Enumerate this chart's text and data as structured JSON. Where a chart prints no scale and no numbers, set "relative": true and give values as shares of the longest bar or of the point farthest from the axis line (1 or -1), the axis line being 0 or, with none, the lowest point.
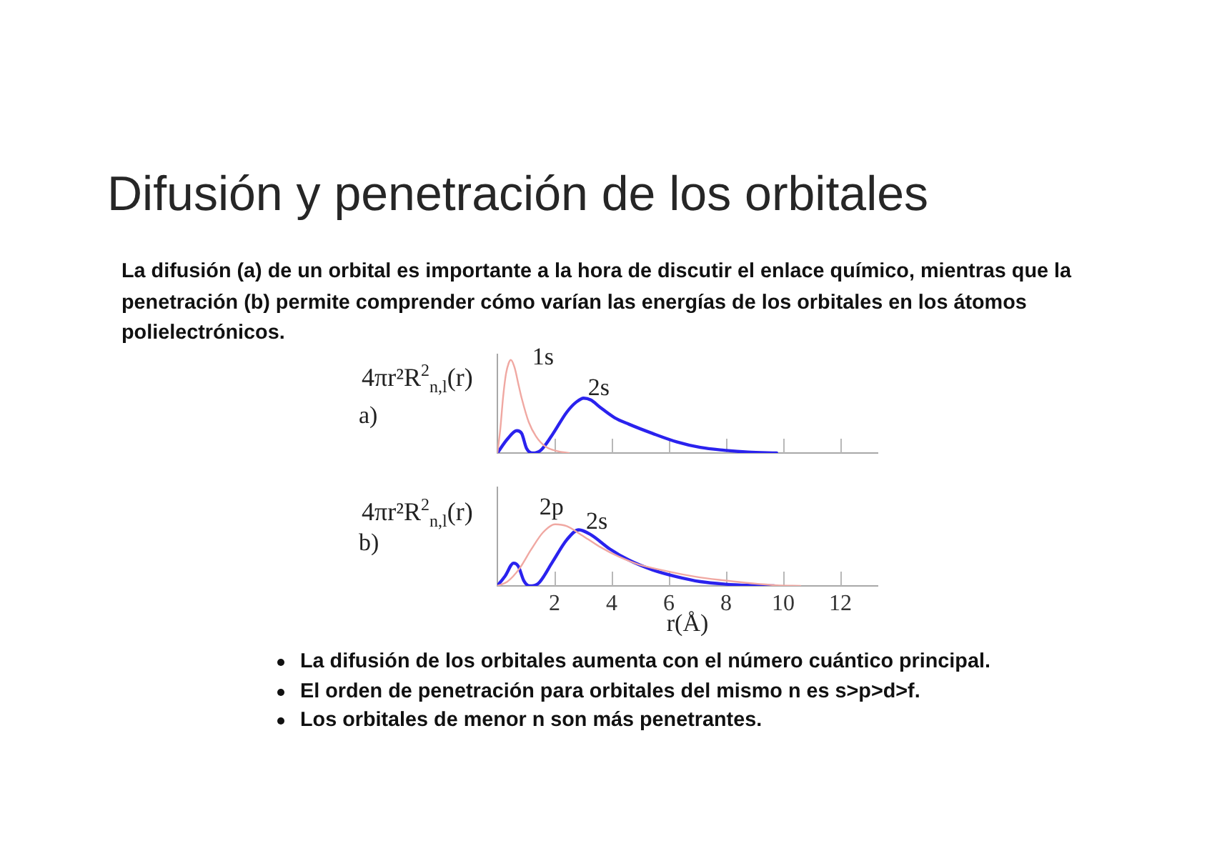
{
  "chart_data": [
    {
      "type": "line",
      "title": "Difusión y penetración de los orbitales",
      "subtitle": "La difusión (a) de un orbital es importante a la hora de discutir el enlace químico, mientras que la penetración (b) permite comprender cómo varían las energías de los orbitales en los átomos polielectrónicos.",
      "ylabel": "4πr²R$^{2}$$_{n,l}$(r)",
      "annotations": [
        "a)"
      ],
      "relative": true,
      "xlim": [
        0,
        13.3
      ],
      "xticks": [
        {
          "value": 2,
          "label": null
        },
        {
          "value": 4,
          "label": null
        },
        {
          "value": 6,
          "label": null
        },
        {
          "value": 8,
          "label": null
        },
        {
          "value": 10,
          "label": null
        },
        {
          "value": 12,
          "label": null
        }
      ],
      "tick_labels": false,
      "series": [
        {
          "name": "1s",
          "color": "#f0a8a2",
          "x": [
            0,
            0.1,
            0.2,
            0.3,
            0.4,
            0.47,
            0.6,
            0.75,
            0.85,
            1.1,
            1.35,
            1.68,
            2.1,
            2.5
          ],
          "values": [
            0,
            0.25,
            0.6,
            0.85,
            0.97,
            1,
            0.92,
            0.72,
            0.59,
            0.33,
            0.18,
            0.07,
            0.02,
            0
          ]
        },
        {
          "name": "2s",
          "color": "#2a22ee",
          "x": [
            0,
            0.35,
            0.68,
            0.85,
            1.02,
            1.23,
            1.52,
            1.93,
            2.43,
            2.77,
            3.02,
            3.27,
            3.6,
            4.1,
            4.6,
            5.43,
            6.27,
            7.1,
            7.93,
            8.77,
            9.77
          ],
          "values": [
            0,
            0.15,
            0.24,
            0.21,
            0.05,
            0,
            0.03,
            0.2,
            0.44,
            0.55,
            0.59,
            0.57,
            0.49,
            0.38,
            0.31,
            0.21,
            0.12,
            0.06,
            0.03,
            0.01,
            0
          ]
        }
      ]
    },
    {
      "type": "line",
      "ylabel": "4πr²R$^{2}$$_{n,l}$(r)",
      "xlabel": "r(Å)",
      "annotations": [
        "b)"
      ],
      "relative": true,
      "xlim": [
        0,
        13.3
      ],
      "xticks": [
        2,
        4,
        6,
        8,
        10,
        12
      ],
      "tick_labels": "x",
      "series": [
        {
          "name": "2p",
          "color": "#f0a8a2",
          "x": [
            0,
            0.35,
            0.77,
            1.18,
            1.6,
            2.02,
            2.43,
            2.93,
            3.6,
            4.27,
            4.93,
            5.93,
            6.93,
            7.93,
            8.93,
            9.77,
            10.6
          ],
          "values": [
            0,
            0.07,
            0.28,
            0.59,
            0.87,
            1,
            0.97,
            0.83,
            0.63,
            0.47,
            0.35,
            0.24,
            0.15,
            0.09,
            0.04,
            0.01,
            0
          ]
        },
        {
          "name": "2s",
          "color": "#2a22ee",
          "x": [
            0,
            0.27,
            0.57,
            0.73,
            0.93,
            1.13,
            1.43,
            1.93,
            2.43,
            2.85,
            3.27,
            3.93,
            4.6,
            5.43,
            6.27,
            7.1,
            7.93,
            8.77,
            9.68
          ],
          "values": [
            0,
            0.16,
            0.37,
            0.32,
            0.08,
            0,
            0.04,
            0.39,
            0.75,
            0.91,
            0.83,
            0.6,
            0.42,
            0.26,
            0.15,
            0.07,
            0.03,
            0.01,
            0
          ]
        }
      ]
    },
    {
      "type": "other",
      "annotations": [
        "La difusión de los orbitales aumenta con el número cuántico principal.",
        "El orden de penetración para orbitales del mismo n es s>p>d>f.",
        "Los orbitales de menor n son más penetrantes."
      ]
    }
  ]
}
